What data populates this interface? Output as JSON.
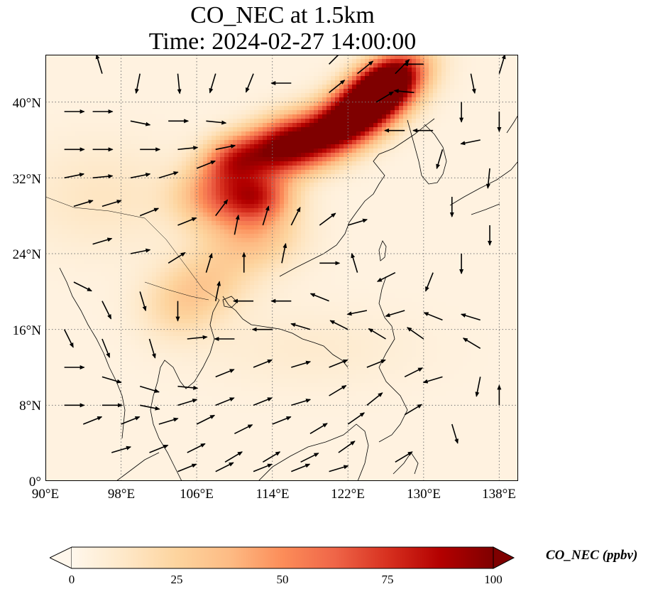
{
  "title": {
    "line1": "CO_NEC at 1.5km",
    "line2": "Time: 2024-02-27 14:00:00"
  },
  "axes": {
    "lon_ticks": [
      "90°E",
      "98°E",
      "106°E",
      "114°E",
      "122°E",
      "130°E",
      "138°E"
    ],
    "lat_ticks": [
      "0°",
      "8°N",
      "16°N",
      "24°N",
      "32°N",
      "40°N"
    ],
    "lon_range": [
      90,
      140
    ],
    "lat_range": [
      0,
      45
    ],
    "gridlines": "dotted"
  },
  "field": {
    "variable": "CO_NEC",
    "level": "1.5km",
    "hotspots": [
      {
        "lon": 122,
        "lat": 38,
        "sx": 4.5,
        "sy": 2.0,
        "rot": 0.55,
        "amp": 120
      },
      {
        "lon": 126,
        "lat": 42,
        "sx": 3.0,
        "sy": 1.8,
        "rot": 0.6,
        "amp": 110
      },
      {
        "lon": 115,
        "lat": 35.5,
        "sx": 2.8,
        "sy": 2.0,
        "rot": 0.4,
        "amp": 75
      },
      {
        "lon": 110,
        "lat": 34,
        "sx": 2.5,
        "sy": 1.8,
        "rot": 0.3,
        "amp": 60
      },
      {
        "lon": 112.5,
        "lat": 30,
        "sx": 2.5,
        "sy": 1.8,
        "rot": 0.0,
        "amp": 55
      },
      {
        "lon": 108,
        "lat": 30,
        "sx": 3.0,
        "sy": 2.2,
        "rot": 0.0,
        "amp": 40
      },
      {
        "lon": 112,
        "lat": 26,
        "sx": 3.5,
        "sy": 2.5,
        "rot": 0.0,
        "amp": 30
      },
      {
        "lon": 107,
        "lat": 21,
        "sx": 3.5,
        "sy": 2.5,
        "rot": 0.2,
        "amp": 22
      },
      {
        "lon": 104,
        "lat": 18,
        "sx": 3.0,
        "sy": 2.5,
        "rot": 0.0,
        "amp": 14
      },
      {
        "lon": 96,
        "lat": 30,
        "sx": 6.0,
        "sy": 4.0,
        "rot": 0.0,
        "amp": 10
      },
      {
        "lon": 118,
        "lat": 14,
        "sx": 8.0,
        "sy": 3.0,
        "rot": 0.0,
        "amp": 6
      }
    ],
    "background_ppbv": 4
  },
  "wind_vectors": [
    [
      92,
      39,
      1,
      0
    ],
    [
      95,
      39,
      1,
      0
    ],
    [
      99,
      38,
      1,
      -0.2
    ],
    [
      103,
      38,
      1,
      0
    ],
    [
      107,
      38,
      1,
      -0.1
    ],
    [
      92,
      35,
      1,
      0
    ],
    [
      95,
      35,
      1,
      0
    ],
    [
      100,
      35,
      1,
      0
    ],
    [
      104,
      35,
      1,
      0.1
    ],
    [
      108,
      35,
      1,
      0.2
    ],
    [
      92,
      32,
      1,
      0.2
    ],
    [
      95,
      32,
      1,
      0.1
    ],
    [
      99,
      32,
      1,
      0.2
    ],
    [
      102,
      32,
      1,
      0.3
    ],
    [
      106,
      33,
      1,
      0.4
    ],
    [
      93,
      29,
      1,
      0.3
    ],
    [
      96,
      29,
      1,
      0.3
    ],
    [
      100,
      28,
      1,
      0.4
    ],
    [
      104,
      27,
      1,
      0.4
    ],
    [
      108,
      28,
      0.6,
      0.8
    ],
    [
      110,
      26,
      0.2,
      1
    ],
    [
      113,
      27,
      0.3,
      1
    ],
    [
      116,
      27,
      0.5,
      1
    ],
    [
      119,
      27,
      0.8,
      0.6
    ],
    [
      122,
      27,
      1,
      0.3
    ],
    [
      95,
      25,
      1,
      0.3
    ],
    [
      99,
      24,
      1,
      0.2
    ],
    [
      103,
      23,
      0.8,
      0.5
    ],
    [
      107,
      22,
      0.3,
      1
    ],
    [
      111,
      22,
      0,
      1
    ],
    [
      115,
      23,
      0.2,
      1
    ],
    [
      119,
      23,
      1,
      0
    ],
    [
      123,
      22,
      -0.3,
      1
    ],
    [
      127,
      22,
      -1,
      -0.5
    ],
    [
      131,
      22,
      -0.4,
      -1
    ],
    [
      134,
      24,
      0,
      -1
    ],
    [
      137,
      27,
      0,
      -1
    ],
    [
      133,
      30,
      0,
      -1
    ],
    [
      137,
      33,
      -0.1,
      -1
    ],
    [
      132,
      35,
      -0.3,
      -1
    ],
    [
      128,
      37,
      -1,
      0
    ],
    [
      125,
      40,
      1,
      0.6
    ],
    [
      127,
      43,
      1,
      1
    ],
    [
      123,
      43,
      1,
      0.8
    ],
    [
      120,
      41,
      1,
      0.8
    ],
    [
      129,
      41,
      -1,
      0.1
    ],
    [
      134,
      40,
      0,
      -1
    ],
    [
      138,
      39,
      0,
      -1
    ],
    [
      131,
      37,
      -1,
      0
    ],
    [
      136,
      36,
      -1,
      -0.2
    ],
    [
      93,
      21,
      1,
      -0.5
    ],
    [
      96,
      19,
      0.5,
      -1
    ],
    [
      100,
      20,
      0.3,
      -1
    ],
    [
      104,
      19,
      0,
      -1
    ],
    [
      108,
      19,
      0.2,
      1
    ],
    [
      112,
      19,
      -1,
      0
    ],
    [
      116,
      19,
      -1,
      0
    ],
    [
      120,
      19,
      -1,
      0.4
    ],
    [
      124,
      18,
      -1,
      -0.2
    ],
    [
      128,
      18,
      -1,
      -0.3
    ],
    [
      132,
      17,
      -1,
      0.4
    ],
    [
      136,
      17,
      -1,
      0.3
    ],
    [
      92,
      16,
      0.5,
      -1
    ],
    [
      96,
      15,
      0.4,
      -1
    ],
    [
      101,
      15,
      0.3,
      -1
    ],
    [
      105,
      15,
      1,
      0.1
    ],
    [
      110,
      15,
      -1,
      0
    ],
    [
      114,
      16,
      -1,
      0
    ],
    [
      118,
      16,
      -1,
      0.3
    ],
    [
      122,
      16,
      -1,
      0.5
    ],
    [
      126,
      15,
      -1,
      0.6
    ],
    [
      130,
      15,
      -1,
      0.7
    ],
    [
      136,
      14,
      -1,
      0.6
    ],
    [
      92,
      12,
      1,
      0
    ],
    [
      96,
      11,
      1,
      -0.3
    ],
    [
      100,
      10,
      1,
      -0.3
    ],
    [
      104,
      10,
      1,
      -0.1
    ],
    [
      108,
      11,
      1,
      0.4
    ],
    [
      112,
      12,
      1,
      0.4
    ],
    [
      116,
      12,
      1,
      0.3
    ],
    [
      120,
      12,
      1,
      0.4
    ],
    [
      124,
      12,
      1,
      0.4
    ],
    [
      128,
      11,
      1,
      0.5
    ],
    [
      92,
      8,
      1,
      0
    ],
    [
      96,
      8,
      1,
      0
    ],
    [
      100,
      8,
      1,
      -0.2
    ],
    [
      104,
      8,
      1,
      0.3
    ],
    [
      108,
      8,
      1,
      0.4
    ],
    [
      112,
      8,
      1,
      0.4
    ],
    [
      116,
      8,
      1,
      0.3
    ],
    [
      120,
      9,
      1,
      0.6
    ],
    [
      124,
      8,
      1,
      0.8
    ],
    [
      128,
      7,
      1,
      0.6
    ],
    [
      94,
      6,
      1,
      0.4
    ],
    [
      98,
      6,
      1,
      0.4
    ],
    [
      102,
      6,
      1,
      0.3
    ],
    [
      106,
      6,
      1,
      0.5
    ],
    [
      110,
      5,
      1,
      0.5
    ],
    [
      114,
      6,
      1,
      0.4
    ],
    [
      118,
      5,
      1,
      0.6
    ],
    [
      122,
      6,
      1,
      0.7
    ],
    [
      97,
      3,
      1,
      0.3
    ],
    [
      101,
      3,
      1,
      0.4
    ],
    [
      105,
      3,
      1,
      0.5
    ],
    [
      109,
      2,
      1,
      0.6
    ],
    [
      113,
      2,
      1,
      0.6
    ],
    [
      117,
      2,
      1,
      0.5
    ],
    [
      121,
      3,
      1,
      0.7
    ],
    [
      104,
      1,
      1,
      0.4
    ],
    [
      108,
      1,
      1,
      0.5
    ],
    [
      112,
      1,
      1,
      0.4
    ],
    [
      116,
      1,
      1,
      0.4
    ],
    [
      120,
      1,
      1,
      0.3
    ],
    [
      127,
      2,
      1,
      0.6
    ],
    [
      133,
      6,
      0.3,
      -1
    ],
    [
      138,
      8,
      0,
      1
    ],
    [
      136,
      11,
      -0.2,
      -1
    ],
    [
      132,
      11,
      -1,
      -0.3
    ],
    [
      96,
      43,
      -0.3,
      1
    ],
    [
      100,
      43,
      -0.2,
      -1
    ],
    [
      104,
      43,
      0.1,
      -1
    ],
    [
      108,
      43,
      -0.3,
      -1
    ],
    [
      112,
      43,
      -0.4,
      -1
    ],
    [
      116,
      42,
      -1,
      0
    ],
    [
      120,
      44,
      1,
      1
    ],
    [
      135,
      43,
      0.2,
      -1
    ],
    [
      138,
      43,
      0.3,
      1
    ],
    [
      130,
      44,
      -1,
      0
    ]
  ],
  "colorbar": {
    "label": "CO_NEC (ppbv)",
    "ticks": [
      "0",
      "25",
      "50",
      "75",
      "100"
    ],
    "min": 0,
    "max": 100,
    "extend": "both",
    "colormap": "OrRd",
    "colors": [
      "#fff7ec",
      "#fee8c8",
      "#fdd49e",
      "#fdbb84",
      "#fc8d59",
      "#ef6548",
      "#d7301f",
      "#b30000",
      "#7f0000"
    ]
  }
}
